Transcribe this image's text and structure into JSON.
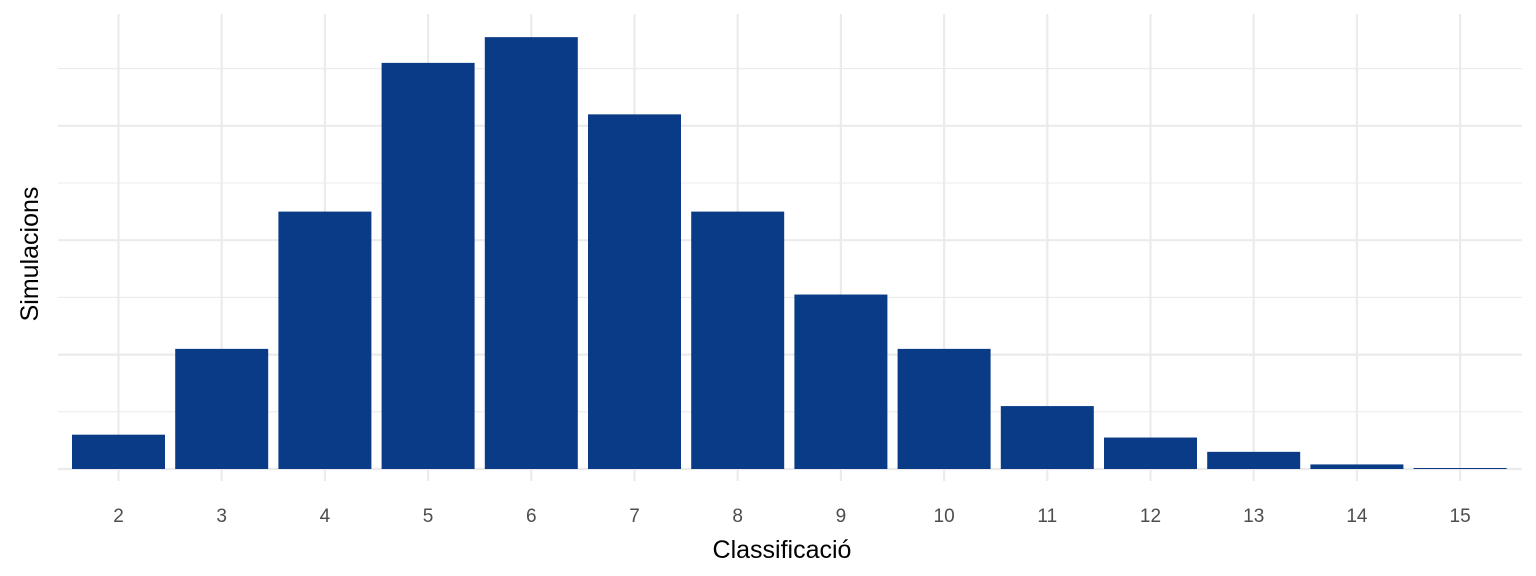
{
  "chart_data": {
    "type": "bar",
    "title": "",
    "xlabel": "Classificació",
    "ylabel": "Simulacions",
    "categories": [
      "2",
      "3",
      "4",
      "5",
      "6",
      "7",
      "8",
      "9",
      "10",
      "11",
      "12",
      "13",
      "14",
      "15"
    ],
    "values": [
      6,
      21,
      45,
      71,
      75.5,
      62,
      45,
      30.5,
      21,
      11,
      5.5,
      3,
      0.8,
      0.15
    ],
    "ylim": [
      0,
      79
    ],
    "y_tick_labels_shown": false,
    "grid": true,
    "legend": "none",
    "colors": {
      "bar": "#093b86",
      "grid": "#ebebeb",
      "tick_text": "#4d4d4d"
    }
  }
}
